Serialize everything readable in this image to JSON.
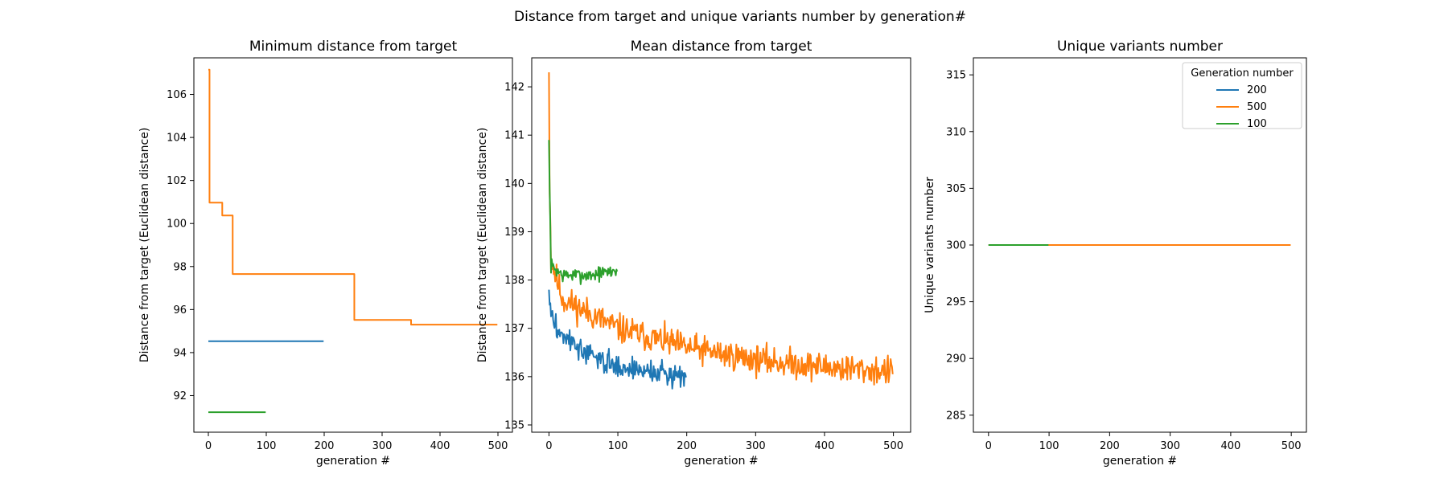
{
  "figure_title": "Distance from target and unique variants number by generation#",
  "colors": {
    "200": "#1f77b4",
    "500": "#ff7f0e",
    "100": "#2ca02c",
    "axes": "#000000",
    "legend_border": "#cccccc"
  },
  "chart_data": [
    {
      "type": "line",
      "title": "Minimum distance from target",
      "xlabel": "generation #",
      "ylabel": "Distance from target (Euclidean distance)",
      "xlim": [
        -25,
        525
      ],
      "ylim": [
        90.3,
        107.7
      ],
      "xticks": [
        0,
        100,
        200,
        300,
        400,
        500
      ],
      "yticks": [
        92,
        94,
        96,
        98,
        100,
        102,
        104,
        106
      ],
      "series": [
        {
          "name": "200",
          "color": "#1f77b4",
          "kind": "flat",
          "x0": 0,
          "x1": 199,
          "value": 94.53
        },
        {
          "name": "500",
          "color": "#ff7f0e",
          "kind": "step",
          "points": [
            [
              0,
              107.15
            ],
            [
              2,
              100.97
            ],
            [
              24,
              100.37
            ],
            [
              42,
              97.65
            ],
            [
              252,
              95.52
            ],
            [
              350,
              95.3
            ],
            [
              499,
              95.3
            ]
          ]
        },
        {
          "name": "100",
          "color": "#2ca02c",
          "kind": "flat",
          "x0": 0,
          "x1": 99,
          "value": 91.23
        }
      ]
    },
    {
      "type": "line",
      "title": "Mean distance from target",
      "xlabel": "generation #",
      "ylabel": "Distance from target (Euclidean distance)",
      "xlim": [
        -25,
        525
      ],
      "ylim": [
        134.85,
        142.6
      ],
      "xticks": [
        0,
        100,
        200,
        300,
        400,
        500
      ],
      "yticks": [
        135,
        136,
        137,
        138,
        139,
        140,
        141,
        142
      ],
      "series": [
        {
          "name": "200",
          "color": "#1f77b4",
          "kind": "noisy",
          "n": 200,
          "start": 137.8,
          "trend": [
            [
              0,
              137.5
            ],
            [
              10,
              137.0
            ],
            [
              50,
              136.5
            ],
            [
              100,
              136.2
            ],
            [
              199,
              136.0
            ]
          ],
          "amp": 0.35,
          "seed": 3,
          "minv": 135.2,
          "maxv": 137.8
        },
        {
          "name": "500",
          "color": "#ff7f0e",
          "kind": "noisy",
          "n": 500,
          "start": 142.3,
          "trend": [
            [
              0,
              140.8
            ],
            [
              3,
              138.4
            ],
            [
              20,
              137.6
            ],
            [
              100,
              137.0
            ],
            [
              200,
              136.6
            ],
            [
              300,
              136.35
            ],
            [
              400,
              136.2
            ],
            [
              499,
              136.1
            ]
          ],
          "amp": 0.45,
          "seed": 11,
          "minv": 135.4,
          "maxv": 142.3
        },
        {
          "name": "100",
          "color": "#2ca02c",
          "kind": "noisy",
          "n": 100,
          "start": 140.9,
          "trend": [
            [
              0,
              140.6
            ],
            [
              3,
              138.3
            ],
            [
              20,
              138.1
            ],
            [
              60,
              138.1
            ],
            [
              99,
              138.2
            ]
          ],
          "amp": 0.22,
          "seed": 7,
          "minv": 137.8,
          "maxv": 140.9
        }
      ]
    },
    {
      "type": "line",
      "title": "Unique variants number",
      "xlabel": "generation #",
      "ylabel": "Unique variants number",
      "xlim": [
        -25,
        525
      ],
      "ylim": [
        283.5,
        316.5
      ],
      "xticks": [
        0,
        100,
        200,
        300,
        400,
        500
      ],
      "yticks": [
        285,
        290,
        295,
        300,
        305,
        310,
        315
      ],
      "legend": {
        "title": "Generation number",
        "entries": [
          "200",
          "500",
          "100"
        ],
        "loc": "upper right"
      },
      "series": [
        {
          "name": "200",
          "color": "#1f77b4",
          "kind": "flat",
          "x0": 0,
          "x1": 199,
          "value": 300
        },
        {
          "name": "500",
          "color": "#ff7f0e",
          "kind": "flat",
          "x0": 0,
          "x1": 499,
          "value": 300
        },
        {
          "name": "100",
          "color": "#2ca02c",
          "kind": "flat",
          "x0": 0,
          "x1": 99,
          "value": 300
        }
      ]
    }
  ]
}
